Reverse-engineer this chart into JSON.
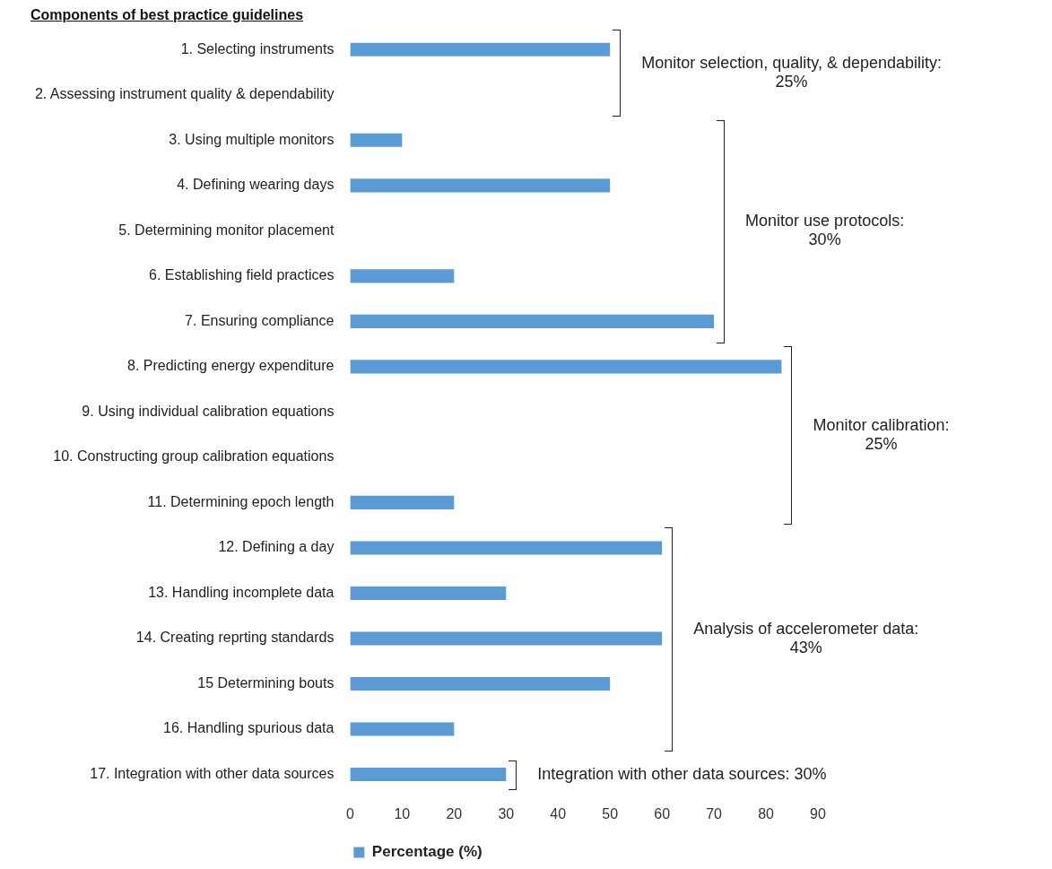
{
  "chart_data": {
    "type": "bar",
    "orientation": "horizontal",
    "title": "Components of best practice guidelines",
    "categories": [
      "1. Selecting instruments",
      "2. Assessing instrument quality & dependability",
      "3. Using multiple monitors",
      "4. Defining wearing days",
      "5. Determining monitor placement",
      "6. Establishing field practices",
      "7. Ensuring compliance",
      "8. Predicting energy expenditure",
      "9. Using individual calibration equations",
      "10. Constructing group calibration equations",
      "11. Determining epoch length",
      "12. Defining a day",
      "13. Handling incomplete data",
      "14. Creating reprting standards",
      "15 Determining bouts",
      "16. Handling spurious data",
      "17. Integration with other data sources"
    ],
    "series": [
      {
        "name": "Percentage (%)",
        "color": "#5b9bd5",
        "values": [
          50,
          0,
          10,
          50,
          0,
          20,
          70,
          83,
          0,
          0,
          20,
          60,
          30,
          60,
          50,
          20,
          30
        ]
      }
    ],
    "xlim": [
      0,
      90
    ],
    "xticks": [
      0,
      10,
      20,
      30,
      40,
      50,
      60,
      70,
      80,
      90
    ],
    "grid": false,
    "legend": "bottom",
    "annotations": [
      "Monitor selection, quality, & dependability:\n25%",
      "Monitor use protocols:\n30%",
      "Monitor calibration:\n25%",
      "Analysis of accelerometer data:\n43%",
      "Integration with other data sources: 30%"
    ]
  }
}
